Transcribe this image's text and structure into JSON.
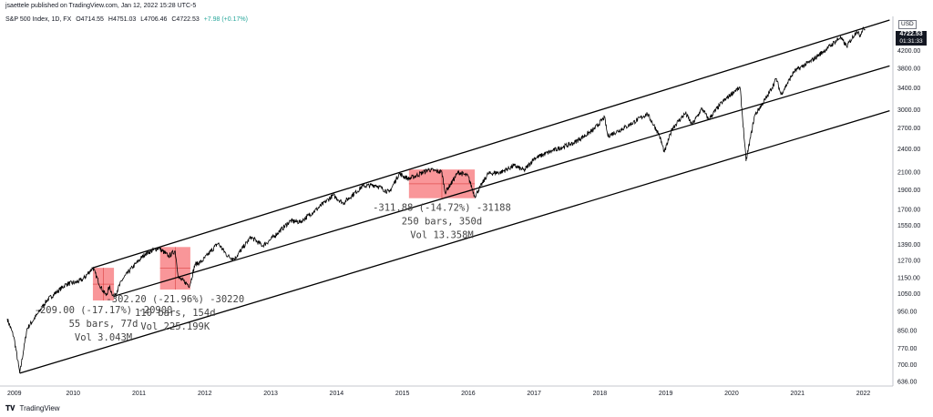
{
  "header": {
    "publisher": "jsaettele published on TradingView.com, Jan 12, 2022 15:28 UTC-5"
  },
  "ohlc": {
    "symbol": "S&P 500 Index, 1D, FX",
    "open": "O4714.55",
    "high": "H4751.03",
    "low": "L4706.46",
    "close": "C4722.53",
    "change": "+7.98 (+0.17%)"
  },
  "price_tag": {
    "price": "4722.53",
    "countdown": "01:31:33"
  },
  "currency": "USD",
  "footer": {
    "brand": "TradingView",
    "logo": "tradingview-logo-icon"
  },
  "chart_data": {
    "type": "line",
    "yscale": "log",
    "ylim": [
      620,
      5000
    ],
    "xlim": [
      2009.0,
      2022.45
    ],
    "y_ticks": [
      "636.00",
      "700.00",
      "770.00",
      "850.00",
      "950.00",
      "1050.00",
      "1150.00",
      "1270.00",
      "1390.00",
      "1550.00",
      "1700.00",
      "1900.00",
      "2100.00",
      "2400.00",
      "2700.00",
      "3000.00",
      "3400.00",
      "3800.00",
      "4200.00"
    ],
    "x_ticks": [
      "2009",
      "2010",
      "2011",
      "2012",
      "2013",
      "2014",
      "2015",
      "2016",
      "2017",
      "2018",
      "2019",
      "2020",
      "2021",
      "2022"
    ],
    "series": [
      {
        "values": [
          [
            2009.0,
            910
          ],
          [
            2009.1,
            820
          ],
          [
            2009.19,
            667
          ],
          [
            2009.3,
            860
          ],
          [
            2009.45,
            930
          ],
          [
            2009.6,
            1010
          ],
          [
            2009.75,
            1060
          ],
          [
            2009.9,
            1110
          ],
          [
            2010.05,
            1120
          ],
          [
            2010.15,
            1140
          ],
          [
            2010.3,
            1217
          ],
          [
            2010.42,
            1090
          ],
          [
            2010.5,
            1040
          ],
          [
            2010.55,
            1090
          ],
          [
            2010.62,
            1030
          ],
          [
            2010.75,
            1140
          ],
          [
            2010.9,
            1220
          ],
          [
            2011.1,
            1320
          ],
          [
            2011.3,
            1363
          ],
          [
            2011.45,
            1300
          ],
          [
            2011.55,
            1340
          ],
          [
            2011.6,
            1150
          ],
          [
            2011.7,
            1120
          ],
          [
            2011.77,
            1099
          ],
          [
            2011.85,
            1240
          ],
          [
            2011.95,
            1260
          ],
          [
            2012.2,
            1400
          ],
          [
            2012.35,
            1300
          ],
          [
            2012.45,
            1280
          ],
          [
            2012.7,
            1450
          ],
          [
            2012.88,
            1380
          ],
          [
            2013.0,
            1430
          ],
          [
            2013.3,
            1590
          ],
          [
            2013.45,
            1580
          ],
          [
            2013.7,
            1700
          ],
          [
            2013.95,
            1840
          ],
          [
            2014.1,
            1760
          ],
          [
            2014.4,
            1940
          ],
          [
            2014.6,
            1950
          ],
          [
            2014.8,
            1870
          ],
          [
            2014.95,
            2080
          ],
          [
            2015.1,
            2020
          ],
          [
            2015.4,
            2130
          ],
          [
            2015.6,
            2100
          ],
          [
            2015.65,
            1870
          ],
          [
            2015.85,
            2100
          ],
          [
            2016.0,
            2050
          ],
          [
            2016.1,
            1829
          ],
          [
            2016.3,
            2080
          ],
          [
            2016.5,
            2100
          ],
          [
            2016.7,
            2180
          ],
          [
            2016.85,
            2120
          ],
          [
            2017.0,
            2270
          ],
          [
            2017.3,
            2380
          ],
          [
            2017.6,
            2480
          ],
          [
            2017.9,
            2670
          ],
          [
            2018.07,
            2872
          ],
          [
            2018.12,
            2580
          ],
          [
            2018.4,
            2720
          ],
          [
            2018.72,
            2930
          ],
          [
            2018.9,
            2600
          ],
          [
            2018.98,
            2351
          ],
          [
            2019.1,
            2700
          ],
          [
            2019.3,
            2940
          ],
          [
            2019.4,
            2750
          ],
          [
            2019.55,
            3020
          ],
          [
            2019.65,
            2840
          ],
          [
            2019.85,
            3120
          ],
          [
            2020.05,
            3340
          ],
          [
            2020.13,
            3393
          ],
          [
            2020.22,
            2237
          ],
          [
            2020.35,
            2900
          ],
          [
            2020.55,
            3250
          ],
          [
            2020.68,
            3580
          ],
          [
            2020.75,
            3270
          ],
          [
            2020.95,
            3730
          ],
          [
            2021.2,
            3950
          ],
          [
            2021.45,
            4250
          ],
          [
            2021.65,
            4530
          ],
          [
            2021.75,
            4300
          ],
          [
            2021.9,
            4700
          ],
          [
            2021.95,
            4570
          ],
          [
            2022.0,
            4797
          ],
          [
            2022.03,
            4722
          ]
        ]
      }
    ],
    "channel_lines": [
      {
        "from": [
          2010.3,
          1217
        ],
        "to": [
          2022.4,
          5000
        ]
      },
      {
        "from": [
          2010.62,
          1035
        ],
        "to": [
          2022.4,
          3850
        ]
      },
      {
        "from": [
          2009.19,
          667
        ],
        "to": [
          2022.4,
          2980
        ]
      }
    ],
    "measure_boxes": [
      {
        "x": [
          2010.3,
          2010.62
        ],
        "y": [
          1010,
          1217
        ],
        "lines": [
          "-209.00 (-17.17%) -20900",
          "55 bars, 77d",
          "Vol 3.043M"
        ]
      },
      {
        "x": [
          2011.32,
          2011.78
        ],
        "y": [
          1075,
          1370
        ],
        "lines": [
          "-302.20 (-21.96%) -30220",
          "110 bars, 154d",
          "Vol 225.199K"
        ]
      },
      {
        "x": [
          2015.1,
          2016.1
        ],
        "y": [
          1810,
          2132
        ],
        "lines": [
          "-311.88 (-14.72%) -31188",
          "250 bars, 350d",
          "Vol 13.358M"
        ]
      }
    ]
  }
}
